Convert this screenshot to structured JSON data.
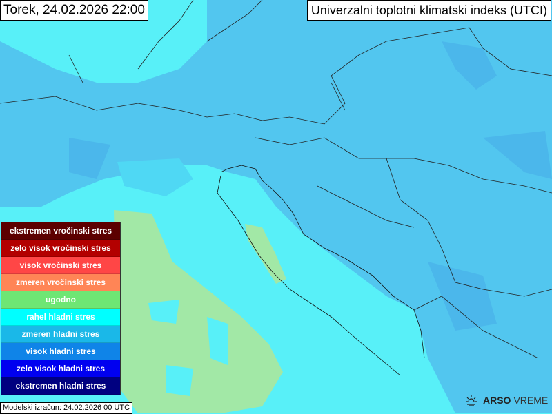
{
  "header": {
    "date_title": "Torek, 24.02.2026 22:00",
    "index_title": "Univerzalni toplotni klimatski indeks (UTCI)"
  },
  "legend": [
    {
      "label": "ekstremen vročinski stres",
      "color": "#5c0000"
    },
    {
      "label": "zelo visok vročinski stres",
      "color": "#b30000"
    },
    {
      "label": "visok vročinski stres",
      "color": "#ff4646"
    },
    {
      "label": "zmeren vročinski stres",
      "color": "#ff8556"
    },
    {
      "label": "ugodno",
      "color": "#6ee674"
    },
    {
      "label": "rahel hladni stres",
      "color": "#00ffff"
    },
    {
      "label": "zmeren hladni stres",
      "color": "#1ab8e8"
    },
    {
      "label": "visok hladni stres",
      "color": "#0f84e8"
    },
    {
      "label": "zelo visok hladni stres",
      "color": "#0000f0"
    },
    {
      "label": "ekstremen hladni stres",
      "color": "#000080"
    }
  ],
  "footer": {
    "model_run": "Modelski izračun: 24.02.2026 00 UTC",
    "brand_bold": "ARSO",
    "brand_light": "VREME"
  }
}
